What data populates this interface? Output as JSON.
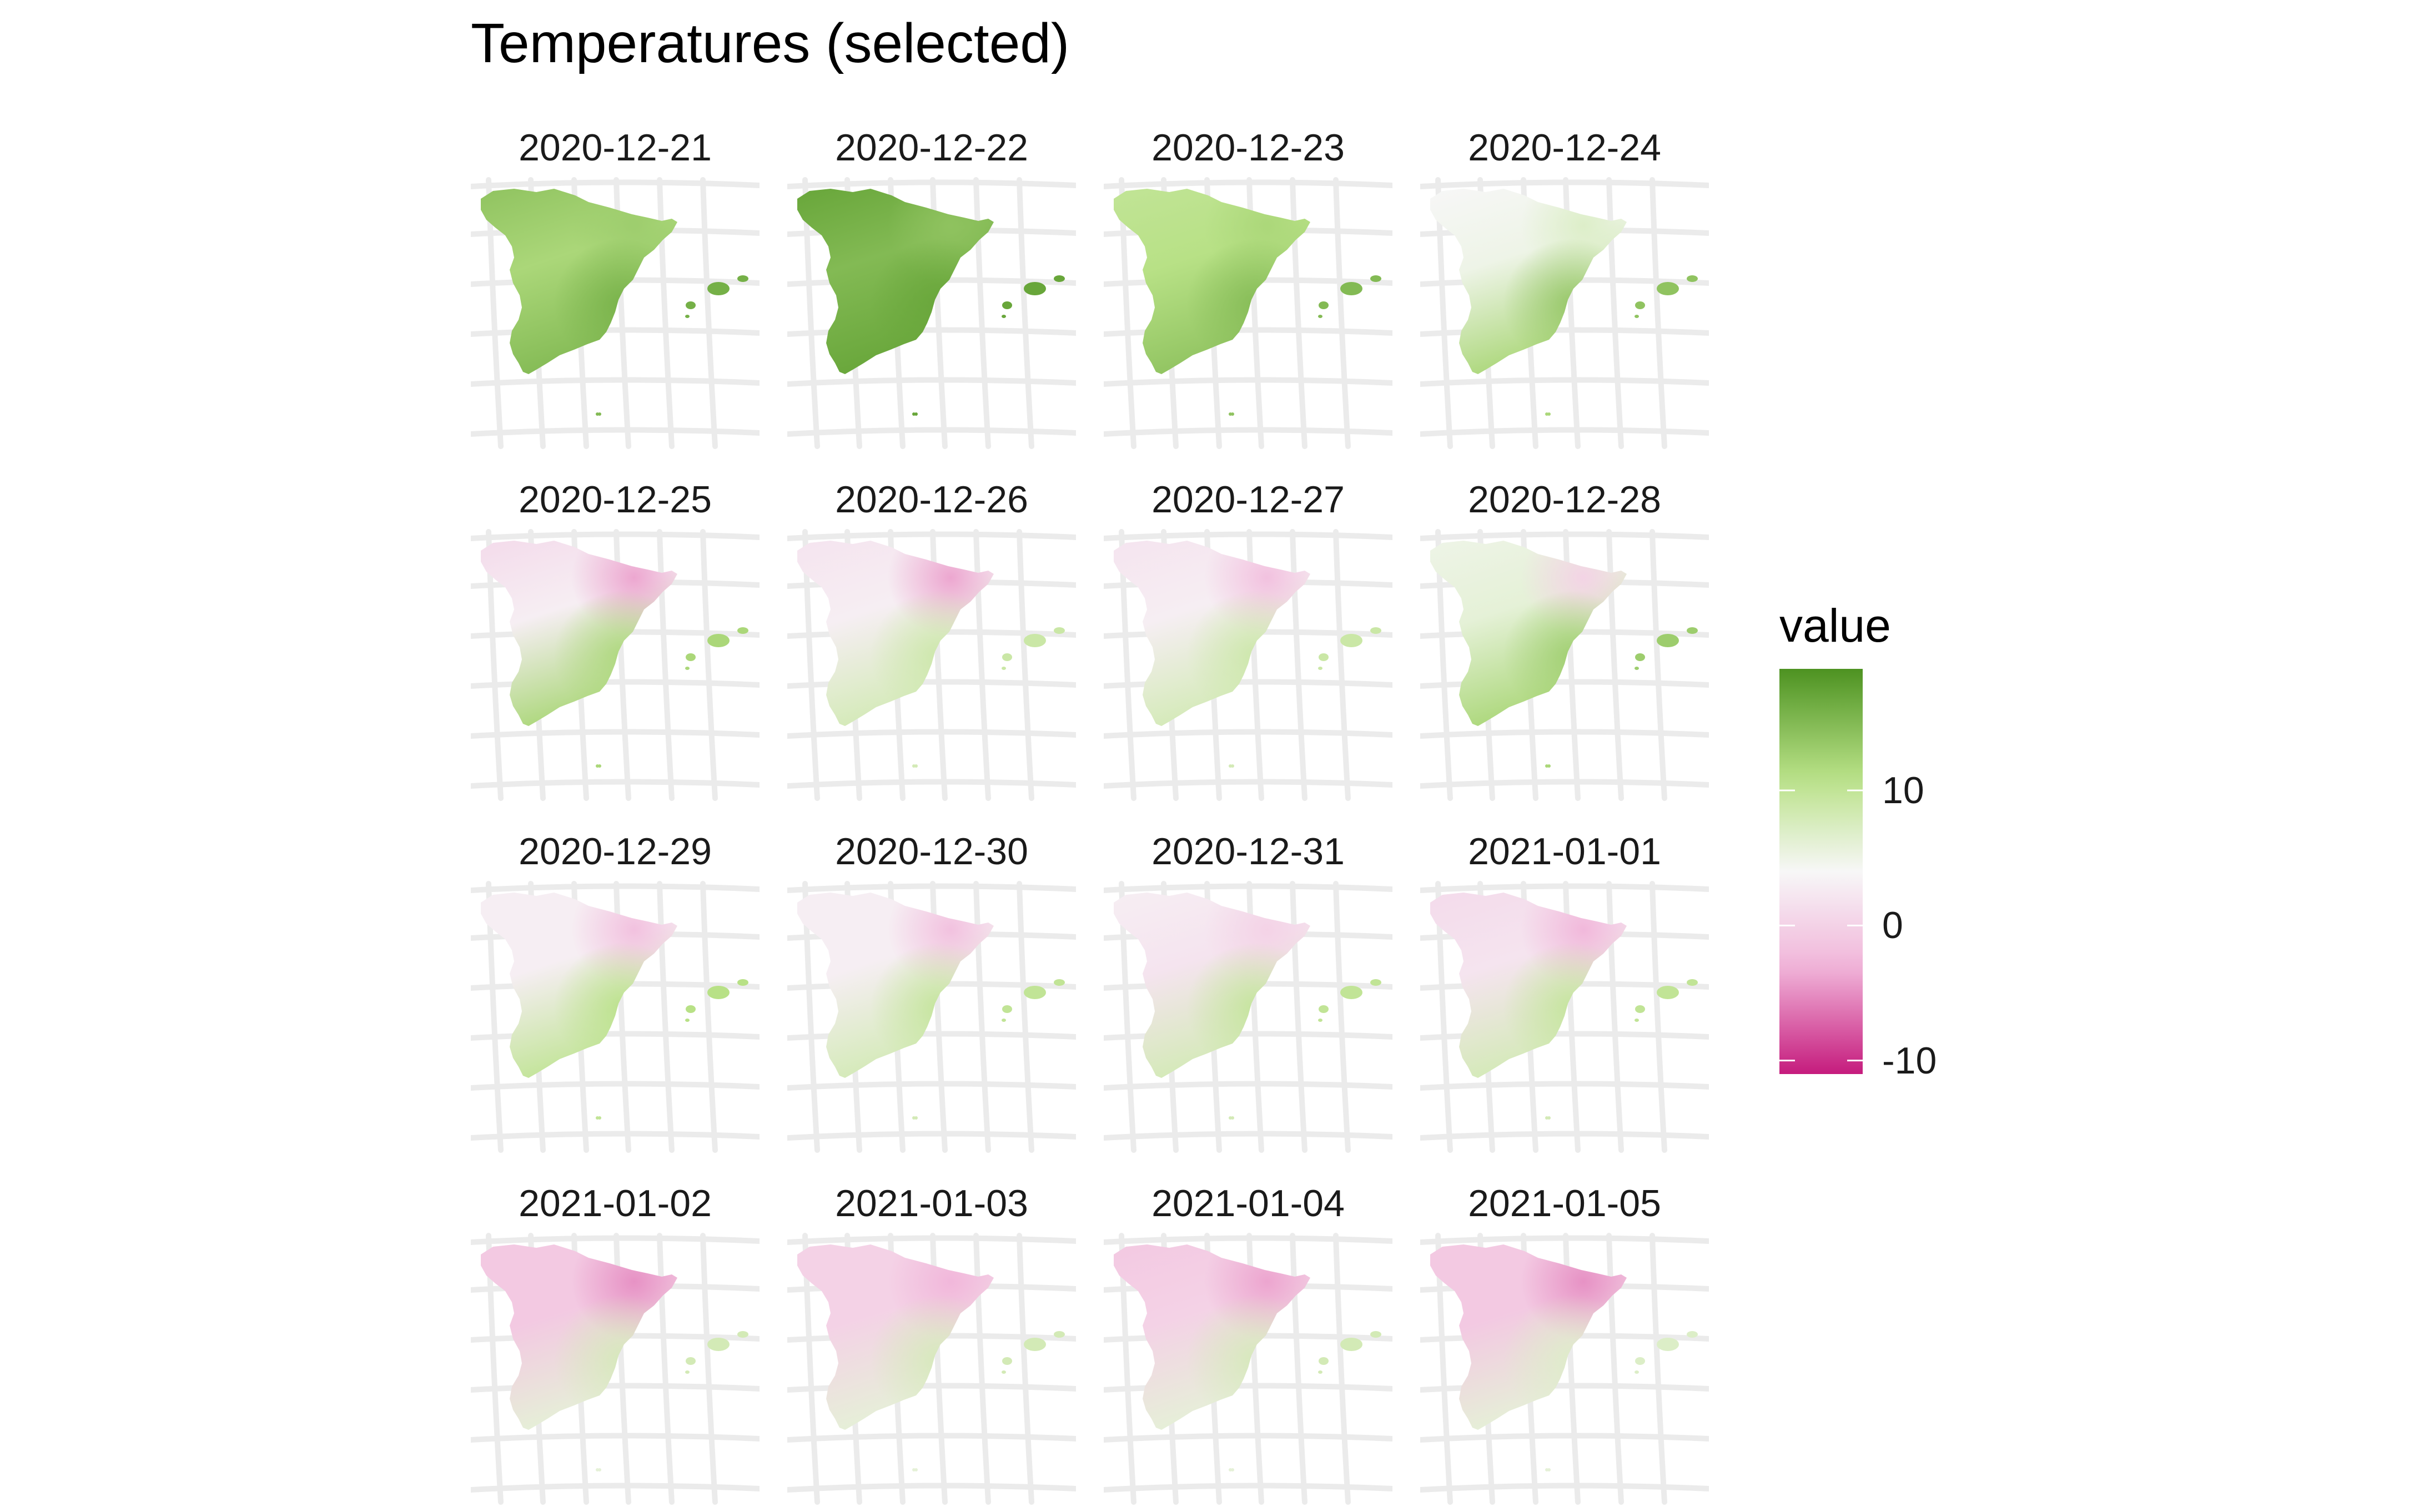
{
  "title": "Temperatures (selected)",
  "map_data": {
    "type": "faceted-choropleth",
    "region": "Spain (mainland, Balearic Islands)",
    "facet_layout": {
      "rows": 4,
      "cols": 4
    },
    "colors": {
      "high": "#4d9221",
      "mid_high": "#b8e186",
      "mid": "#f7f7f7",
      "mid_low": "#f1b6da",
      "low": "#c51b7d",
      "grid": "#ebebeb"
    },
    "legend": {
      "title": "value",
      "position": "right",
      "ticks": [
        {
          "label": "10",
          "value": 10
        },
        {
          "label": "0",
          "value": 0
        },
        {
          "label": "-10",
          "value": -10
        }
      ],
      "range": [
        -11,
        19
      ]
    },
    "panels": [
      {
        "date": "2020-12-21",
        "north": 14,
        "center": 12,
        "south": 15,
        "northeast": 13,
        "coast": 16
      },
      {
        "date": "2020-12-22",
        "north": 17,
        "center": 15,
        "south": 17,
        "northeast": 14,
        "coast": 17
      },
      {
        "date": "2020-12-23",
        "north": 10,
        "center": 11,
        "south": 14,
        "northeast": 12,
        "coast": 15
      },
      {
        "date": "2020-12-24",
        "north": 4,
        "center": 5,
        "south": 12,
        "northeast": 7,
        "coast": 14
      },
      {
        "date": "2020-12-25",
        "north": 1,
        "center": 3,
        "south": 12,
        "northeast": -4,
        "coast": 12
      },
      {
        "date": "2020-12-26",
        "north": 2,
        "center": 3,
        "south": 8,
        "northeast": -4,
        "coast": 9
      },
      {
        "date": "2020-12-27",
        "north": 2,
        "center": 3,
        "south": 8,
        "northeast": -2,
        "coast": 9
      },
      {
        "date": "2020-12-28",
        "north": 5,
        "center": 6,
        "south": 12,
        "northeast": 0,
        "coast": 13
      },
      {
        "date": "2020-12-29",
        "north": 3,
        "center": 3,
        "south": 10,
        "northeast": -2,
        "coast": 11
      },
      {
        "date": "2020-12-30",
        "north": 3,
        "center": 3,
        "south": 8,
        "northeast": -2,
        "coast": 10
      },
      {
        "date": "2020-12-31",
        "north": 3,
        "center": 2,
        "south": 8,
        "northeast": 0,
        "coast": 10
      },
      {
        "date": "2021-01-01",
        "north": 1,
        "center": 2,
        "south": 8,
        "northeast": -3,
        "coast": 10
      },
      {
        "date": "2021-01-02",
        "north": -1,
        "center": -1,
        "south": 6,
        "northeast": -5,
        "coast": 8
      },
      {
        "date": "2021-01-03",
        "north": 0,
        "center": 0,
        "south": 6,
        "northeast": -3,
        "coast": 8
      },
      {
        "date": "2021-01-04",
        "north": -1,
        "center": 0,
        "south": 6,
        "northeast": -4,
        "coast": 8
      },
      {
        "date": "2021-01-05",
        "north": -1,
        "center": -1,
        "south": 6,
        "northeast": -5,
        "coast": 7
      }
    ]
  }
}
